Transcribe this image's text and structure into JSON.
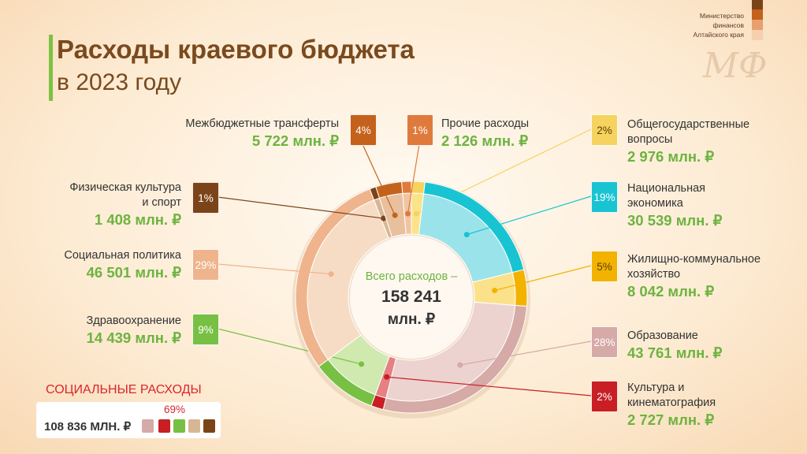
{
  "header": {
    "title_line1": "Расходы краевого бюджета",
    "title_line2": "в 2023 году",
    "ministry_lines": [
      "Министерство",
      "финансов",
      "Алтайского края"
    ],
    "logo_text": "МФ"
  },
  "center": {
    "line1": "Всего расходов –",
    "line2": "158 241",
    "line3": "млн. ₽"
  },
  "social": {
    "title": "СОЦИАЛЬНЫЕ РАСХОДЫ",
    "value": "108 836 МЛН. ₽",
    "percent": "69%"
  },
  "chart_data": {
    "type": "pie",
    "subtype": "donut",
    "total": 158241,
    "unit": "млн. ₽",
    "slices": [
      {
        "label_lines": [
          "Общегосударственные",
          "вопросы"
        ],
        "value": 2976,
        "value_text": "2 976 млн. ₽",
        "percent": "2%",
        "color": "#fbe38a",
        "ring_color": "#f6d35f"
      },
      {
        "label_lines": [
          "Национальная",
          "экономика"
        ],
        "value": 30539,
        "value_text": "30 539 млн. ₽",
        "percent": "19%",
        "color": "#9be3ea",
        "ring_color": "#19c4d2"
      },
      {
        "label_lines": [
          "Жилищно-коммунальное",
          "хозяйство"
        ],
        "value": 8042,
        "value_text": "8 042 млн. ₽",
        "percent": "5%",
        "color": "#fbe28a",
        "ring_color": "#f3b200"
      },
      {
        "label_lines": [
          "Образование"
        ],
        "value": 43761,
        "value_text": "43 761 млн. ₽",
        "percent": "28%",
        "color": "#ecd3cf",
        "ring_color": "#d6aaa6"
      },
      {
        "label_lines": [
          "Культура и",
          "кинематография"
        ],
        "value": 2727,
        "value_text": "2 727 млн. ₽",
        "percent": "2%",
        "color": "#e68083",
        "ring_color": "#c81e24"
      },
      {
        "label_lines": [
          "Здравоохранение"
        ],
        "value": 14439,
        "value_text": "14 439 млн. ₽",
        "percent": "9%",
        "color": "#cfe9ae",
        "ring_color": "#77c043"
      },
      {
        "label_lines": [
          "Социальная политика"
        ],
        "value": 46501,
        "value_text": "46 501 млн. ₽",
        "percent": "29%",
        "color": "#f7dcc5",
        "ring_color": "#efb48c"
      },
      {
        "label_lines": [
          "Физическая культура",
          "и спорт"
        ],
        "value": 1408,
        "value_text": "1 408 млн. ₽",
        "percent": "1%",
        "color": "#d8b693",
        "ring_color": "#7b4418"
      },
      {
        "label_lines": [
          "Межбюджетные трансферты"
        ],
        "value": 5722,
        "value_text": "5 722 млн. ₽",
        "percent": "4%",
        "color": "#e8c09d",
        "ring_color": "#c4621c"
      },
      {
        "label_lines": [
          "Прочие расходы"
        ],
        "value": 2126,
        "value_text": "2 126 млн. ₽",
        "percent": "1%",
        "color": "#f2c4a0",
        "ring_color": "#e07a3c"
      }
    ]
  }
}
